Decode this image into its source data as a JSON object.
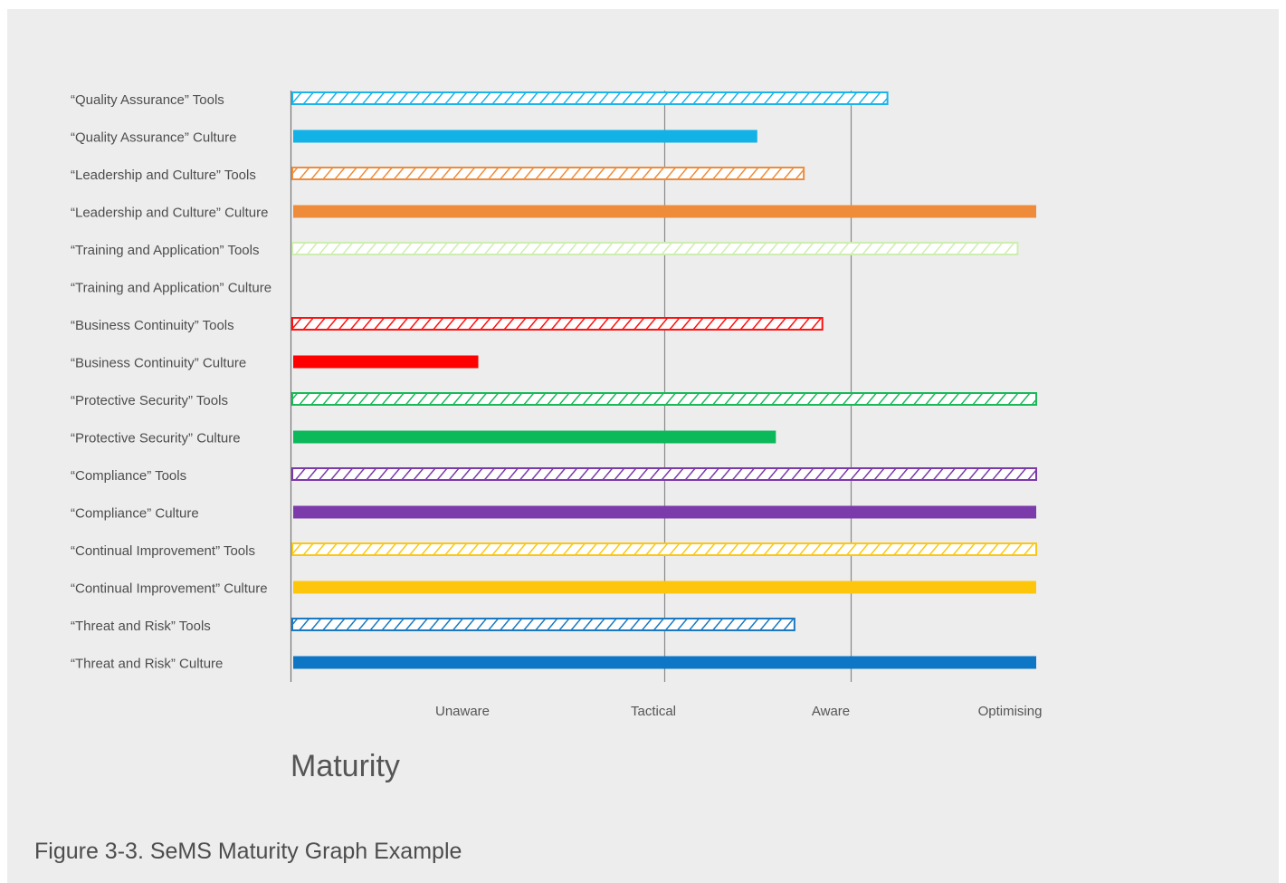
{
  "caption": "Figure 3-3. SeMS Maturity Graph Example",
  "chart_data": {
    "type": "bar",
    "orientation": "horizontal",
    "xlabel": "Maturity",
    "x_ticks": [
      "Unaware",
      "Tactical",
      "Aware",
      "Optimising"
    ],
    "xlim": [
      0,
      4
    ],
    "categories": [
      "“Quality Assurance” Tools",
      "“Quality Assurance” Culture",
      "“Leadership and Culture” Tools",
      "“Leadership and Culture” Culture",
      "“Training and Application” Tools",
      "“Training and Application” Culture",
      "“Business Continuity” Tools",
      "“Business Continuity” Culture",
      "“Protective Security” Tools",
      "“Protective Security” Culture",
      "“Compliance” Tools",
      "“Compliance” Culture",
      "“Continual Improvement” Tools",
      "“Continual Improvement” Culture",
      "“Threat and Risk” Tools",
      "“Threat and Risk” Culture"
    ],
    "values": [
      3.2,
      2.5,
      2.75,
      4.0,
      3.9,
      0,
      2.85,
      1.0,
      4.0,
      2.6,
      4.0,
      4.0,
      4.0,
      4.0,
      2.7,
      4.0
    ],
    "styles": [
      "hatched",
      "solid",
      "hatched",
      "solid",
      "hatched",
      "solid",
      "hatched",
      "solid",
      "hatched",
      "solid",
      "hatched",
      "solid",
      "hatched",
      "solid",
      "hatched",
      "solid"
    ],
    "colors": [
      "#1cb3e8",
      "#12b1e6",
      "#ee8c3c",
      "#ee8c3c",
      "#cdeeb0",
      "#cdeeb0",
      "#ff1010",
      "#ff0000",
      "#1ab858",
      "#0bb85a",
      "#7a3aa8",
      "#7c3bab",
      "#fbc715",
      "#fdc60a",
      "#1a79c0",
      "#0d76c5"
    ],
    "gridlines": [
      "Tactical",
      "Aware"
    ],
    "legend": "none"
  }
}
